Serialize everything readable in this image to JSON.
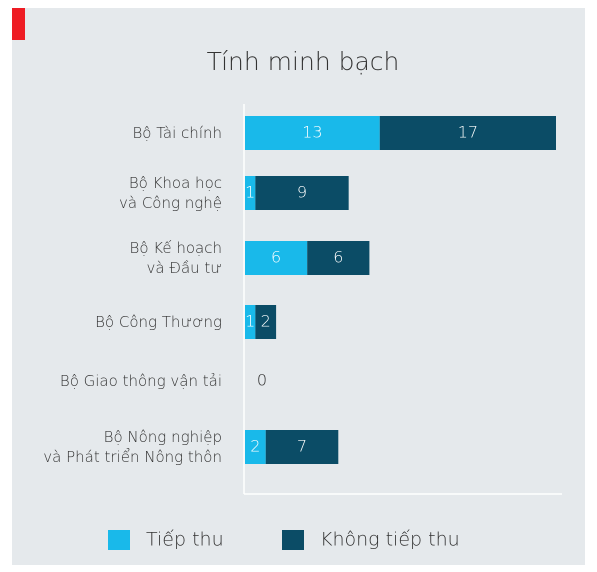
{
  "chart_data": {
    "type": "stacked-bar-horizontal",
    "title": "Tính minh bạch",
    "categories": [
      [
        "Bộ Tài chính"
      ],
      [
        "Bộ Khoa học",
        "và Công nghệ"
      ],
      [
        "Bộ Kế hoạch",
        "và Đầu tư"
      ],
      [
        "Bộ Công Thương"
      ],
      [
        "Bộ Giao thông vận tải"
      ],
      [
        "Bộ Nông nghiệp",
        "và Phát triển Nông thôn"
      ]
    ],
    "series": [
      {
        "name": "Tiếp thu",
        "color": "#19b9ea",
        "values": [
          13,
          1,
          6,
          1,
          0,
          2
        ]
      },
      {
        "name": "Không tiếp thu",
        "color": "#0b4c66",
        "values": [
          17,
          9,
          6,
          2,
          0,
          7
        ]
      }
    ]
  }
}
